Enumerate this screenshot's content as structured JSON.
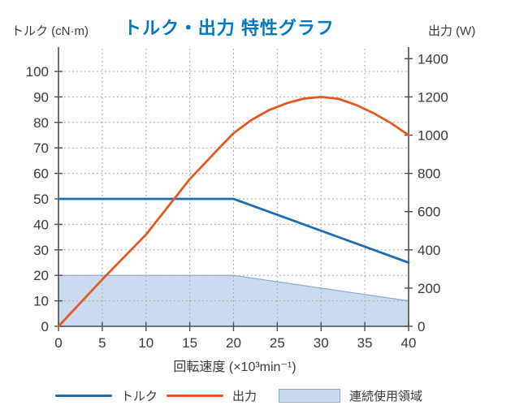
{
  "title": "トルク・出力 特性グラフ",
  "left_axis_title": "トルク (cN·m)",
  "right_axis_title": "出力 (W)",
  "x_axis_title": "回転速度 (×10³min⁻¹)",
  "colors": {
    "title": "#0078c4",
    "torque_line": "#1f6cb0",
    "output_line": "#e05a24",
    "area_fill": "#c8d9ee",
    "area_border": "#86a9d6",
    "axis": "#4d4d4d",
    "grid": "#9b9b9b",
    "text": "#3a3a3a"
  },
  "legend": [
    {
      "label": "トルク",
      "type": "line",
      "color": "#1f6cb0"
    },
    {
      "label": "出力",
      "type": "line",
      "color": "#e05a24"
    },
    {
      "label": "連続使用領域",
      "type": "area",
      "color": "#c8d9ee",
      "border": "#86a9d6"
    }
  ],
  "chart_data": {
    "type": "line",
    "title": "トルク・出力 特性グラフ",
    "grid": "dotted, horizontal every 10 cN·m and vertical every 5 ×10³min⁻¹",
    "x_axis": {
      "label": "回転速度 (×10³min⁻¹)",
      "min": 0,
      "max": 40,
      "ticks": [
        0,
        5,
        10,
        15,
        20,
        25,
        30,
        35,
        40
      ]
    },
    "left_axis": {
      "label": "トルク (cN·m)",
      "min": 0,
      "max": 100,
      "scale_top": 105,
      "ticks": [
        0,
        10,
        20,
        30,
        40,
        50,
        60,
        70,
        80,
        90,
        100
      ]
    },
    "right_axis": {
      "label": "出力 (W)",
      "min": 0,
      "max": 1400,
      "ticks": [
        0,
        200,
        400,
        600,
        800,
        1000,
        1200,
        1400
      ]
    },
    "series": [
      {
        "name": "トルク",
        "axis": "left",
        "color": "#1f6cb0",
        "points": [
          [
            0,
            50
          ],
          [
            20,
            50
          ],
          [
            40,
            25
          ]
        ]
      },
      {
        "name": "出力",
        "axis": "right",
        "color": "#e05a24",
        "key_points_note": "rises from 0, ~1000W at 20, peak ~1200W at 30, ~1000W at 40",
        "points": [
          [
            0,
            0
          ],
          [
            5,
            245
          ],
          [
            10,
            480
          ],
          [
            15,
            770
          ],
          [
            18,
            915
          ],
          [
            20,
            1010
          ],
          [
            22,
            1078
          ],
          [
            24,
            1130
          ],
          [
            26,
            1166
          ],
          [
            28,
            1191
          ],
          [
            30,
            1200
          ],
          [
            32,
            1190
          ],
          [
            34,
            1158
          ],
          [
            36,
            1115
          ],
          [
            38,
            1063
          ],
          [
            40,
            1000
          ]
        ]
      }
    ],
    "area": {
      "name": "連続使用領域",
      "axis": "left",
      "fill": "#c8d9ee",
      "border": "#86a9d6",
      "points": [
        [
          0,
          20
        ],
        [
          20,
          20
        ],
        [
          40,
          10
        ]
      ]
    },
    "legend_position": "bottom"
  }
}
